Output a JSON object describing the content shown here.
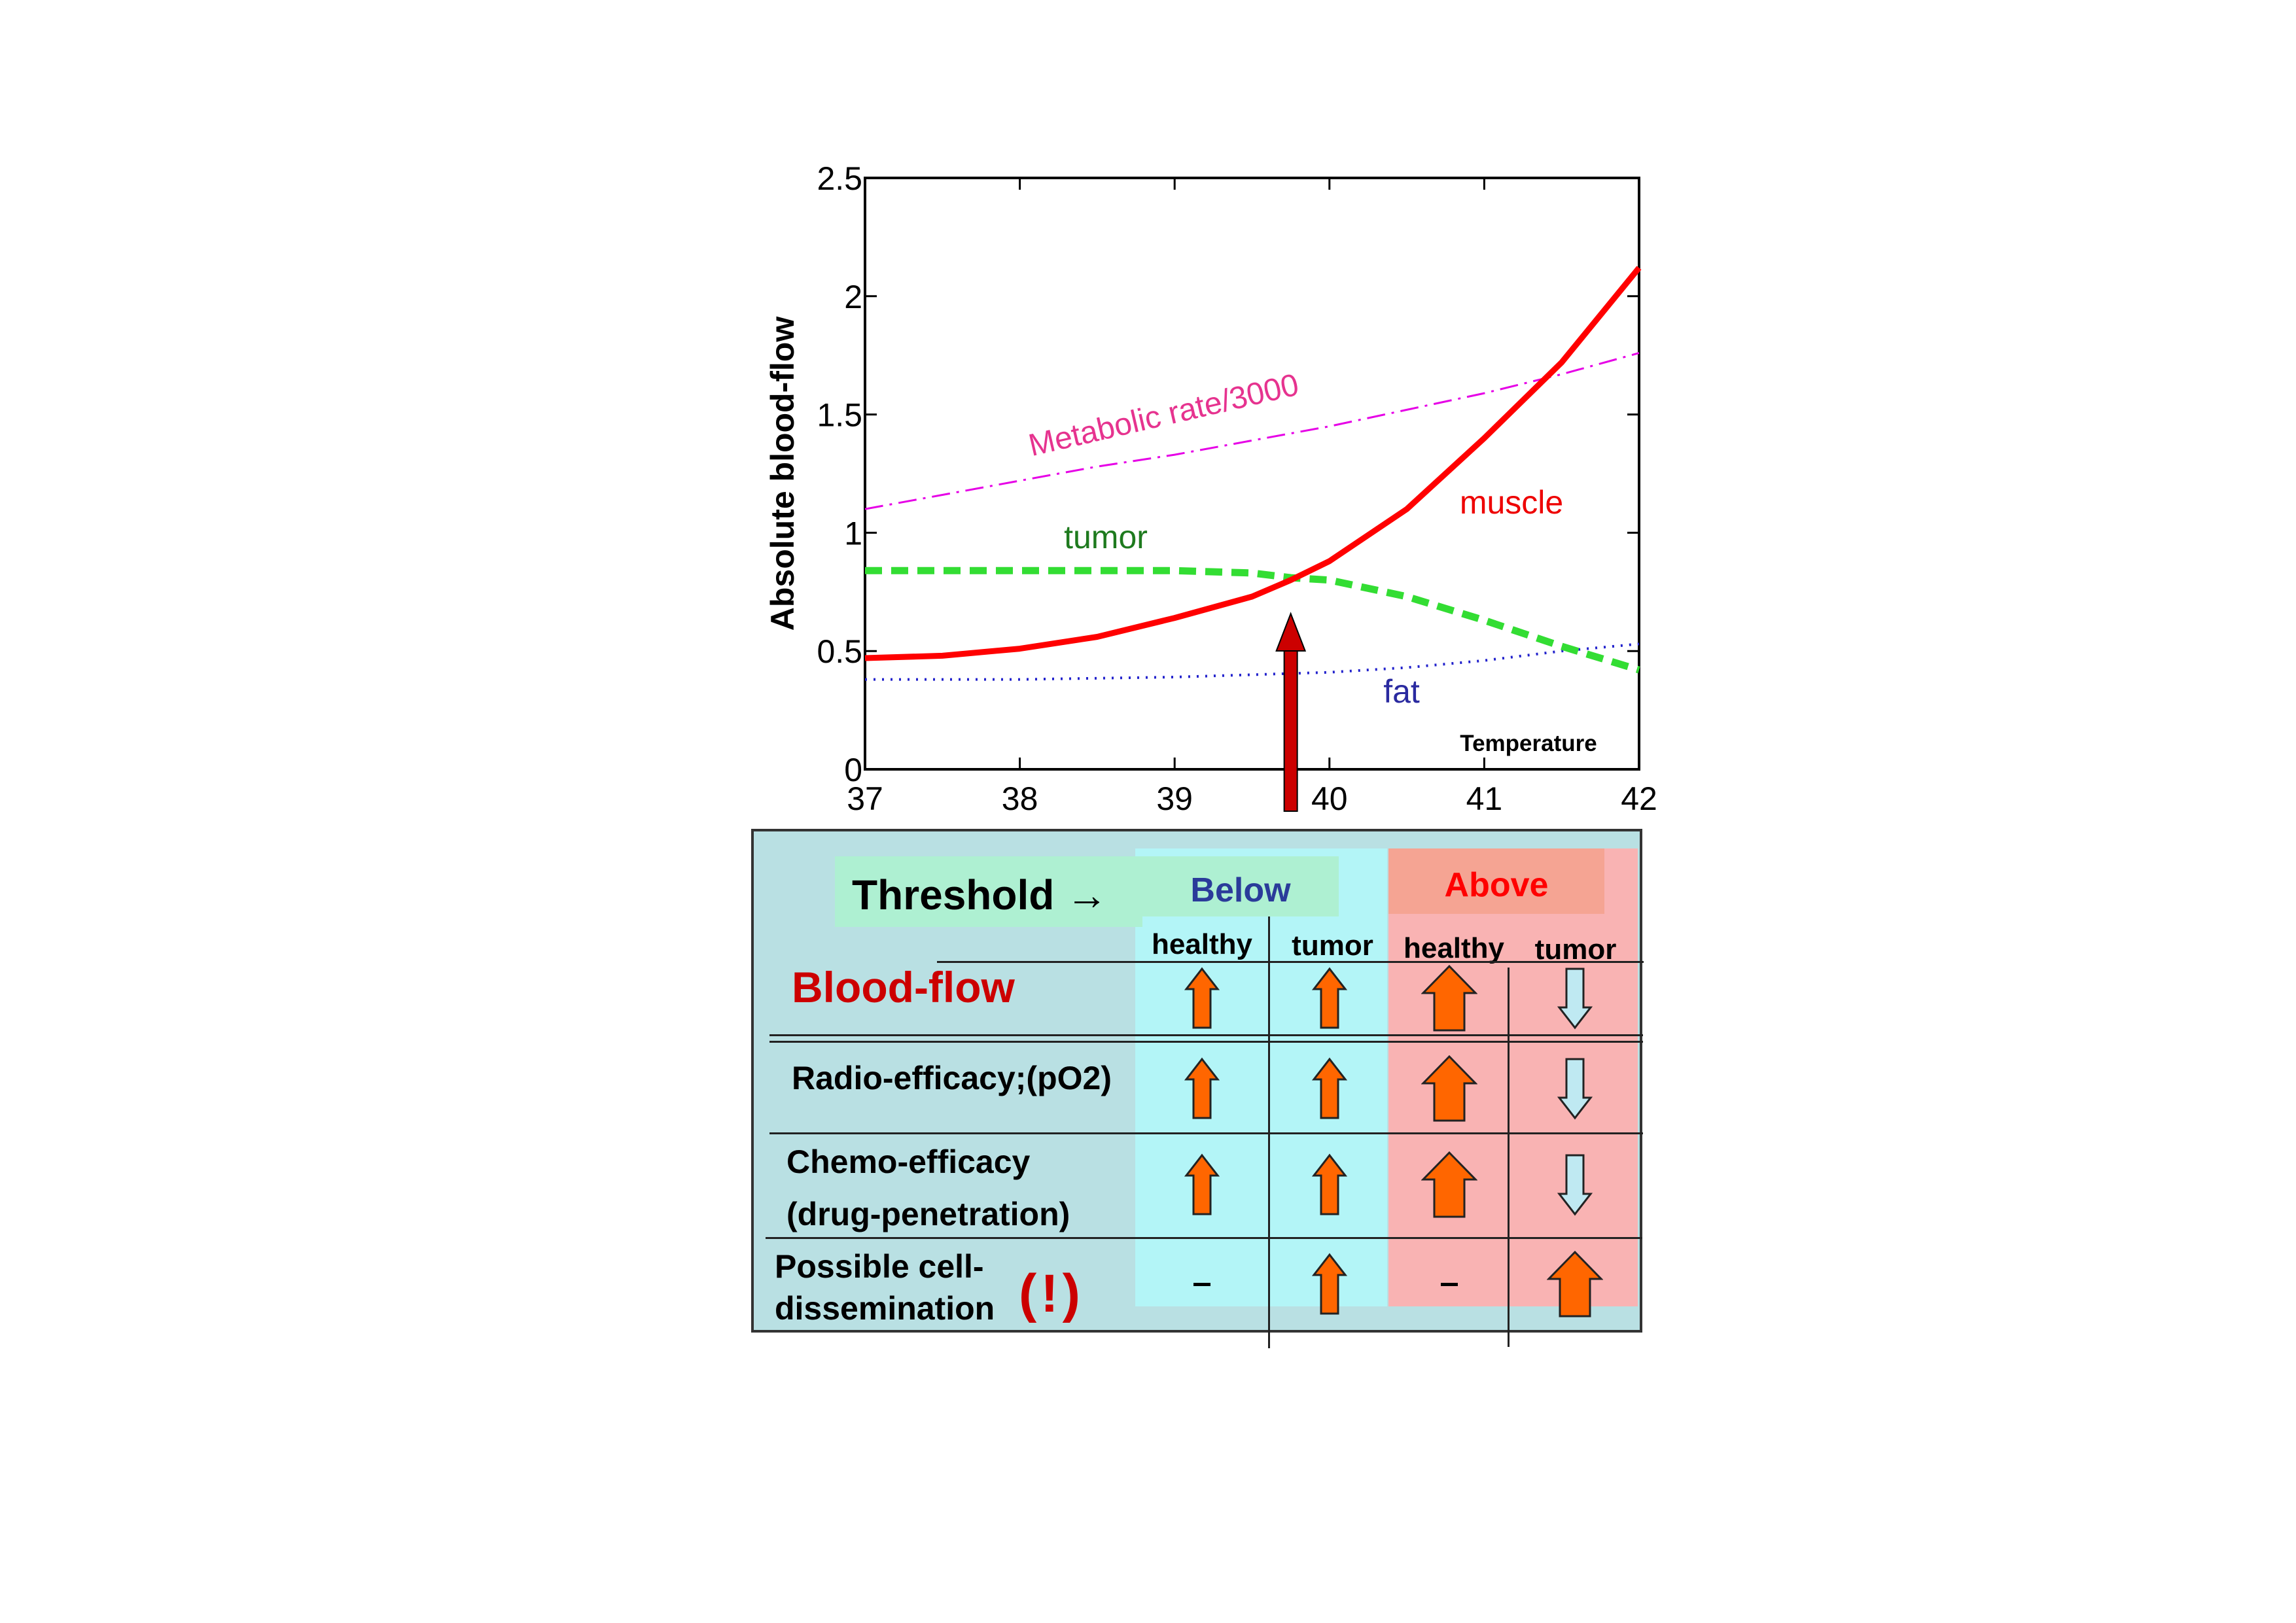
{
  "chart_data": {
    "type": "line",
    "xlim": [
      37,
      42
    ],
    "ylim": [
      0,
      2.5
    ],
    "x_ticks": [
      "37",
      "38",
      "39",
      "40",
      "41",
      "42"
    ],
    "y_ticks": [
      "0",
      "0.5",
      "1",
      "1.5",
      "2",
      "2.5"
    ],
    "ylabel": "Absolute blood-flow",
    "xlabel": "Temperature",
    "grid": false,
    "series": [
      {
        "name": "Metabolic rate/3000",
        "color": "#e600e6",
        "style": "dash-dot",
        "x": [
          37,
          37.5,
          38,
          38.5,
          39,
          39.5,
          40,
          40.5,
          41,
          41.5,
          42
        ],
        "y": [
          1.1,
          1.16,
          1.22,
          1.28,
          1.33,
          1.39,
          1.45,
          1.52,
          1.59,
          1.67,
          1.76
        ]
      },
      {
        "name": "muscle",
        "color": "#ff0000",
        "style": "solid",
        "x": [
          37,
          37.5,
          38,
          38.5,
          39,
          39.5,
          39.75,
          40,
          40.5,
          41,
          41.5,
          42
        ],
        "y": [
          0.47,
          0.48,
          0.51,
          0.56,
          0.64,
          0.73,
          0.8,
          0.88,
          1.1,
          1.4,
          1.72,
          2.12
        ]
      },
      {
        "name": "tumor",
        "color": "#33dd33",
        "style": "dashed",
        "x": [
          37,
          37.5,
          38,
          38.5,
          39,
          39.5,
          39.75,
          40,
          40.5,
          41,
          41.5,
          42
        ],
        "y": [
          0.84,
          0.84,
          0.84,
          0.84,
          0.84,
          0.83,
          0.81,
          0.8,
          0.73,
          0.63,
          0.52,
          0.42
        ]
      },
      {
        "name": "fat",
        "color": "#2222cc",
        "style": "dotted",
        "x": [
          37,
          37.5,
          38,
          38.5,
          39,
          39.5,
          40,
          40.5,
          41,
          41.5,
          42
        ],
        "y": [
          0.38,
          0.38,
          0.38,
          0.385,
          0.39,
          0.4,
          0.41,
          0.43,
          0.46,
          0.5,
          0.53
        ]
      }
    ],
    "threshold_x": 39.75,
    "threshold_color": "#cc0000"
  },
  "panel": {
    "threshold_label": "Threshold →",
    "below_label": "Below",
    "above_label": "Above",
    "columns": [
      "healthy",
      "tumor",
      "healthy",
      "tumor"
    ],
    "rows": [
      {
        "label": "Blood-flow"
      },
      {
        "label": "Radio-efficacy;(pO2)"
      },
      {
        "label_line1": "Chemo-efficacy",
        "label_line2": "(drug-penetration)"
      },
      {
        "label_line1": "Possible cell-",
        "label_line2": "dissemination",
        "warning": "(!)"
      }
    ],
    "cells": [
      [
        "up-small",
        "up-small",
        "up-large",
        "down-small"
      ],
      [
        "up-small",
        "up-small",
        "up-large",
        "down-small"
      ],
      [
        "up-small",
        "up-small",
        "up-large",
        "down-small"
      ],
      [
        "dash",
        "up-small",
        "dash",
        "up-large"
      ]
    ],
    "colors": {
      "panel_bg": "#b9e0e3",
      "below_bg": "#b3f5f7",
      "above_bg": "#f9b3b3",
      "threshold_box": "#aef0d2",
      "above_box": "#f5a493",
      "below_text": "#2a3b9a",
      "above_text": "#ff0000",
      "bloodflow_text": "#cc0000",
      "arrow_up": "#ff6600",
      "arrow_down": "#bfe9f2"
    }
  }
}
